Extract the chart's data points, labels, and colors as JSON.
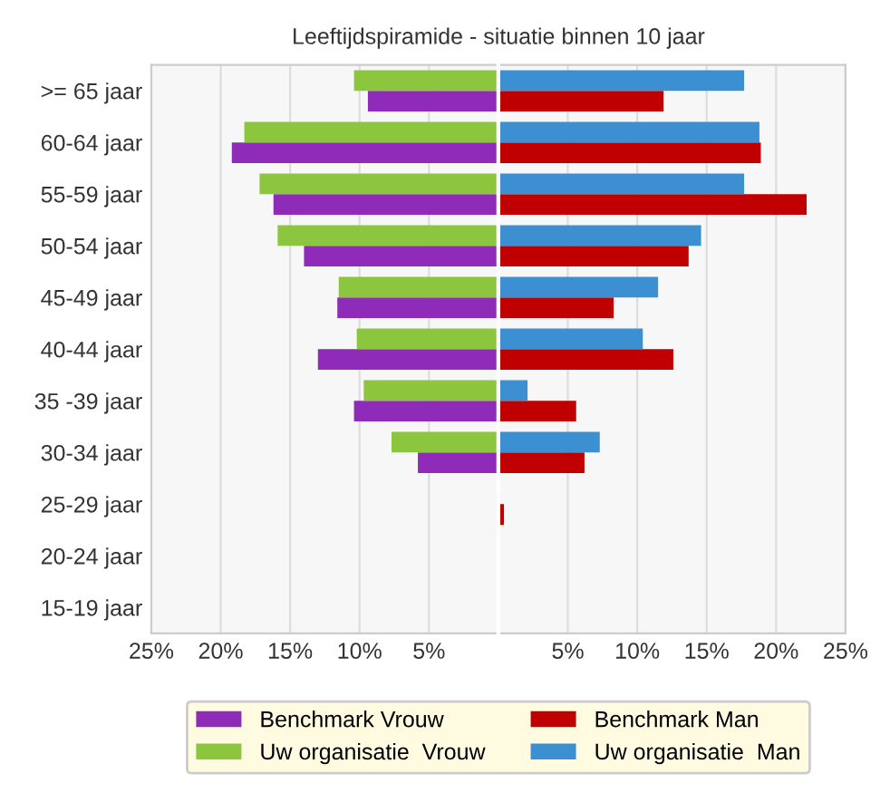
{
  "chart_data": [
    {
      "type": "bar",
      "orientation": "horizontal",
      "title": "Leeftijdspiramide - situatie binnen 10 jaar",
      "categories": [
        ">= 65 jaar",
        "60-64 jaar",
        "55-59 jaar",
        "50-54 jaar",
        "45-49 jaar",
        "40-44 jaar",
        "35 -39 jaar",
        "30-34 jaar",
        "25-29 jaar",
        "20-24 jaar",
        "15-19 jaar"
      ],
      "series": [
        {
          "name": "Benchmark Vrouw",
          "color": "#8e2bb8",
          "values": [
            9.4,
            19.2,
            16.2,
            14.0,
            11.6,
            13.0,
            10.4,
            5.8,
            null,
            null,
            null
          ]
        },
        {
          "name": "Uw organisatie  Vrouw",
          "color": "#8cc63f",
          "values": [
            10.4,
            18.3,
            17.2,
            15.9,
            11.5,
            10.2,
            9.7,
            7.7,
            null,
            null,
            null
          ]
        }
      ],
      "xlim": [
        25,
        0
      ],
      "xticks": [
        {
          "value": 25,
          "label": "25%"
        },
        {
          "value": 20,
          "label": "20%"
        },
        {
          "value": 15,
          "label": "15%"
        },
        {
          "value": 10,
          "label": "10%"
        },
        {
          "value": 5,
          "label": "5%"
        }
      ],
      "grid": "x",
      "legend": "bottom"
    },
    {
      "type": "bar",
      "orientation": "horizontal",
      "categories": [
        null,
        null,
        null,
        null,
        null,
        null,
        null,
        null,
        null,
        null,
        null
      ],
      "series": [
        {
          "name": "Benchmark Man",
          "color": "#c00000",
          "values": [
            11.9,
            18.9,
            22.2,
            13.7,
            8.3,
            12.6,
            5.6,
            6.2,
            0.4,
            null,
            null
          ]
        },
        {
          "name": "Uw organisatie  Man",
          "color": "#3c8fd0",
          "values": [
            17.7,
            18.8,
            17.7,
            14.6,
            11.5,
            10.4,
            2.1,
            7.3,
            null,
            null,
            null
          ]
        }
      ],
      "xlim": [
        0,
        25
      ],
      "xticks": [
        {
          "value": 5,
          "label": "5%"
        },
        {
          "value": 10,
          "label": "10%"
        },
        {
          "value": 15,
          "label": "15%"
        },
        {
          "value": 20,
          "label": "20%"
        },
        {
          "value": 25,
          "label": "25%"
        }
      ],
      "tick_labels": "x",
      "grid": "x",
      "legend": "bottom"
    }
  ]
}
